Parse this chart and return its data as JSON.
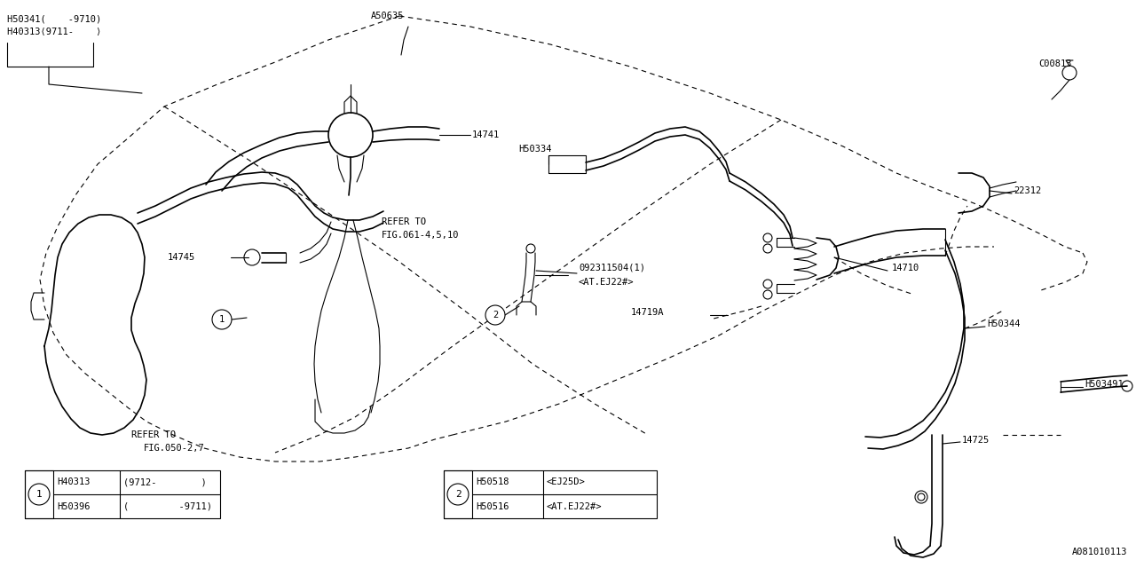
{
  "bg_color": "#ffffff",
  "line_color": "#000000",
  "fig_width": 12.8,
  "fig_height": 6.4,
  "diagram_id": "A081010113",
  "labels": {
    "H50341_line1": "H50341(    -9710)",
    "H50341_line2": "H40313⟨9711-    ⟩",
    "A50635": "A50635",
    "H50334": "H50334",
    "C00813": "C00813",
    "14741": "14741",
    "14745": "14745",
    "REFER_TO_1_line1": "REFER TO",
    "REFER_TO_1_line2": "FIG.061-4,5,10",
    "22312": "22312",
    "14710": "14710",
    "14719A": "14719A",
    "H50344": "H50344",
    "092311504": "092311504(1)",
    "AT_EJ22": "<AT.EJ22#>",
    "14725": "14725",
    "H503491": "H503491",
    "REFER_TO_2_line1": "REFER TO",
    "REFER_TO_2_line2": "FIG.050-2,7"
  },
  "legend1": {
    "circle_num": "1",
    "rows": [
      [
        "H50396",
        "(         -9711)"
      ],
      [
        "H40313",
        "(9712-        )"
      ]
    ]
  },
  "legend2": {
    "circle_num": "2",
    "rows": [
      [
        "H50516",
        "<AT.EJ22#>"
      ],
      [
        "H50518",
        "<EJ25D>"
      ]
    ]
  }
}
